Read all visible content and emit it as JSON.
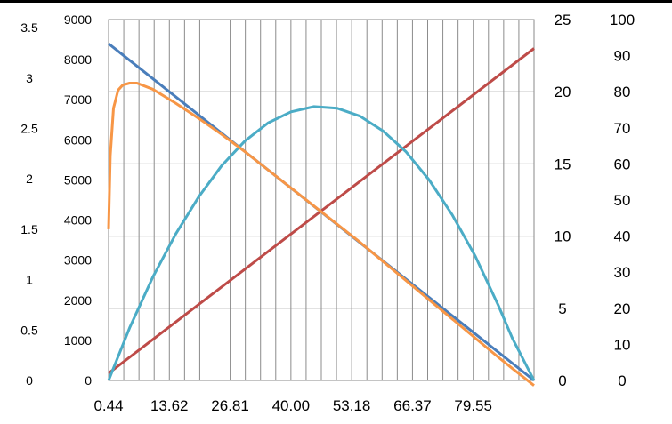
{
  "chart_data": {
    "type": "line",
    "title": "",
    "grid": true,
    "legend": "none",
    "x": {
      "tick_labels": [
        "0.44",
        "13.62",
        "26.81",
        "40.00",
        "53.18",
        "66.37",
        "79.55"
      ],
      "tick_values": [
        0.44,
        13.62,
        26.81,
        40.0,
        53.18,
        66.37,
        79.55
      ],
      "range": [
        0.44,
        92.74
      ]
    },
    "axes": {
      "left_outer": {
        "ticks": [
          "0",
          "0.5",
          "1",
          "1.5",
          "2",
          "2.5",
          "3",
          "3.5"
        ],
        "range": [
          0,
          3.5
        ]
      },
      "left_inner": {
        "ticks": [
          "0",
          "1000",
          "2000",
          "3000",
          "4000",
          "5000",
          "6000",
          "7000",
          "8000",
          "9000"
        ],
        "range": [
          0,
          9000
        ]
      },
      "right_inner": {
        "ticks": [
          "0",
          "5",
          "10",
          "15",
          "20",
          "25"
        ],
        "range": [
          0,
          25
        ]
      },
      "right_outer": {
        "ticks": [
          "0",
          "10",
          "20",
          "30",
          "40",
          "50",
          "60",
          "70",
          "80",
          "90",
          "100"
        ],
        "range": [
          0,
          100
        ]
      }
    },
    "series": [
      {
        "color": "#4a7ebb",
        "axis": "left_inner",
        "points": [
          [
            0.44,
            8400
          ],
          [
            92.74,
            0
          ]
        ]
      },
      {
        "color": "#be4b48",
        "axis": "right_outer",
        "points": [
          [
            0.44,
            2
          ],
          [
            92.74,
            92
          ]
        ]
      },
      {
        "color": "#4bacc6",
        "axis": "left_inner",
        "points": [
          [
            0.44,
            0
          ],
          [
            5,
            1310
          ],
          [
            10,
            2570
          ],
          [
            15,
            3650
          ],
          [
            20,
            4580
          ],
          [
            25,
            5360
          ],
          [
            30,
            5970
          ],
          [
            35,
            6420
          ],
          [
            40,
            6700
          ],
          [
            45,
            6830
          ],
          [
            50,
            6790
          ],
          [
            55,
            6590
          ],
          [
            60,
            6220
          ],
          [
            65,
            5700
          ],
          [
            70,
            5000
          ],
          [
            75,
            4130
          ],
          [
            80,
            3100
          ],
          [
            85,
            1870
          ],
          [
            88,
            1060
          ],
          [
            92.74,
            0
          ]
        ]
      },
      {
        "color": "#f79646",
        "axis": "left_outer",
        "points": [
          [
            0.44,
            1.5
          ],
          [
            0.8,
            2.23
          ],
          [
            1.5,
            2.7
          ],
          [
            2.5,
            2.88
          ],
          [
            3.5,
            2.93
          ],
          [
            5,
            2.95
          ],
          [
            6.6,
            2.95
          ],
          [
            10,
            2.89
          ],
          [
            15,
            2.75
          ],
          [
            20,
            2.6
          ],
          [
            25,
            2.44
          ],
          [
            30,
            2.27
          ],
          [
            35,
            2.09
          ],
          [
            40,
            1.91
          ],
          [
            45,
            1.73
          ],
          [
            50,
            1.55
          ],
          [
            55,
            1.37
          ],
          [
            60,
            1.18
          ],
          [
            65,
            0.99
          ],
          [
            70,
            0.8
          ],
          [
            75,
            0.61
          ],
          [
            80,
            0.42
          ],
          [
            85,
            0.23
          ],
          [
            88,
            0.12
          ],
          [
            92.74,
            -0.05
          ]
        ]
      }
    ]
  }
}
